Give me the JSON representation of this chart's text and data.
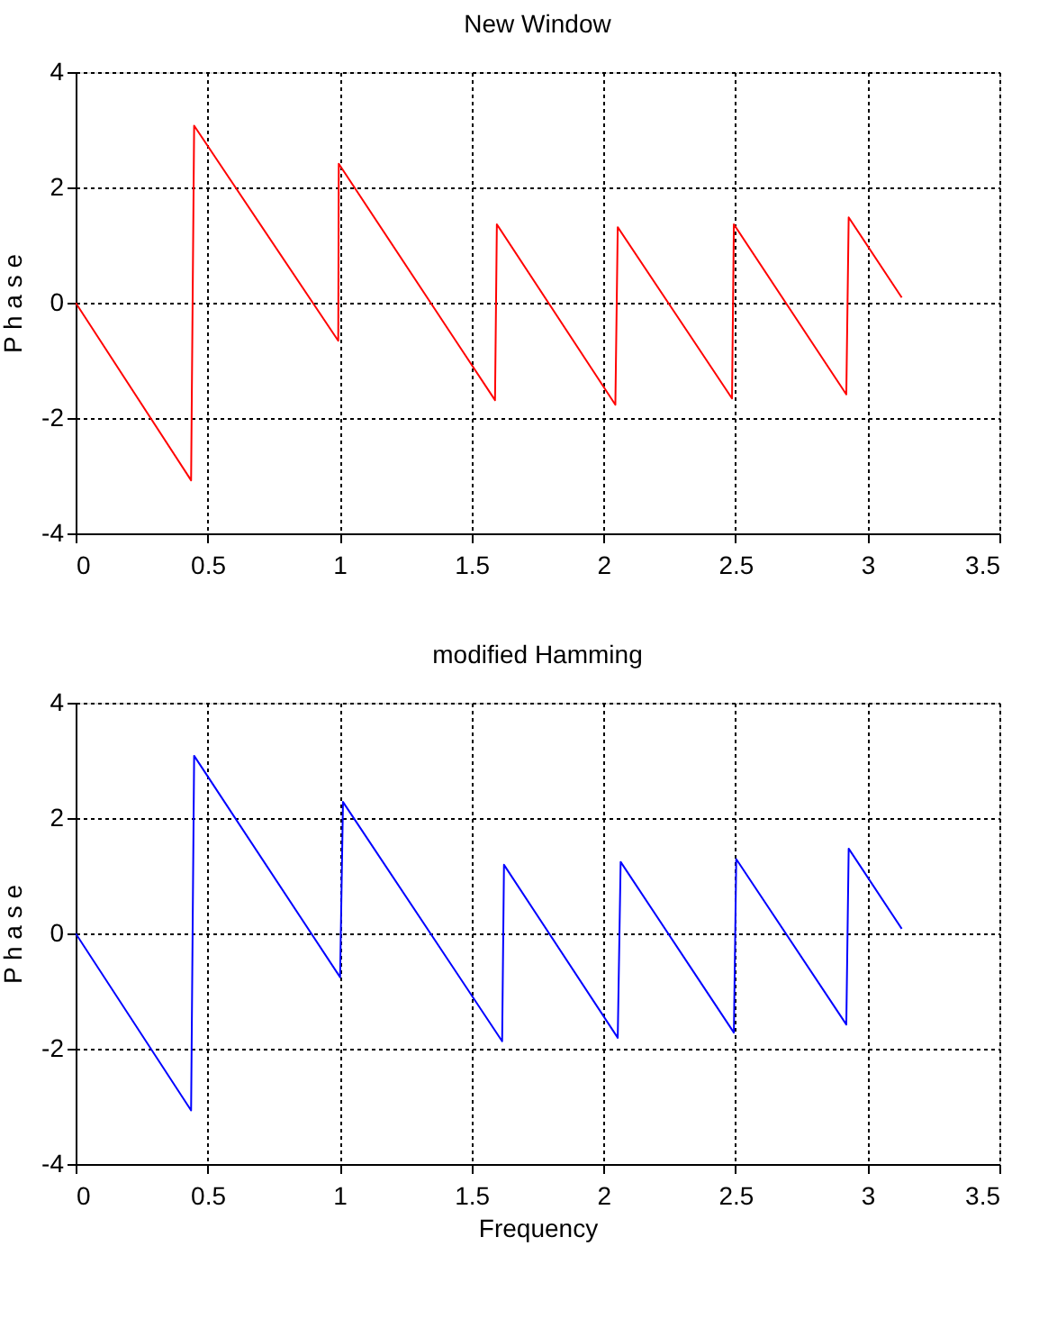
{
  "chart_data": [
    {
      "type": "line",
      "title": "New Window",
      "ylabel": "P h a s e",
      "xlim": [
        0,
        3.5
      ],
      "xticks": [
        0,
        0.5,
        1,
        1.5,
        2,
        2.5,
        3,
        3.5
      ],
      "ylim": [
        -4,
        4
      ],
      "yticks": [
        -4,
        -2,
        0,
        2,
        4
      ],
      "grid": true,
      "x": [
        0,
        0.4375,
        0.449,
        0.995,
        0.997,
        1.589,
        1.596,
        2.045,
        2.054,
        2.487,
        2.494,
        2.92,
        2.929,
        3.13
      ],
      "series": [
        {
          "color": "#ff0000",
          "values": [
            0,
            -3.08,
            3.07,
            -0.66,
            2.41,
            -1.69,
            1.36,
            -1.77,
            1.31,
            -1.66,
            1.36,
            -1.59,
            1.48,
            0.09
          ]
        }
      ]
    },
    {
      "type": "line",
      "title": "modified Hamming",
      "xlabel": "Frequency",
      "ylabel": "P h a s e",
      "xlim": [
        0,
        3.5
      ],
      "xticks": [
        0,
        0.5,
        1,
        1.5,
        2,
        2.5,
        3,
        3.5
      ],
      "ylim": [
        -4,
        4
      ],
      "yticks": [
        -4,
        -2,
        0,
        2,
        4
      ],
      "grid": true,
      "x": [
        0,
        0.4375,
        0.449,
        1.002,
        1.013,
        1.616,
        1.623,
        2.054,
        2.065,
        2.494,
        2.503,
        2.92,
        2.929,
        3.13
      ],
      "series": [
        {
          "color": "#0000ff",
          "values": [
            0,
            -3.07,
            3.08,
            -0.76,
            2.28,
            -1.87,
            1.19,
            -1.81,
            1.24,
            -1.72,
            1.29,
            -1.58,
            1.47,
            0.08
          ]
        }
      ]
    }
  ]
}
